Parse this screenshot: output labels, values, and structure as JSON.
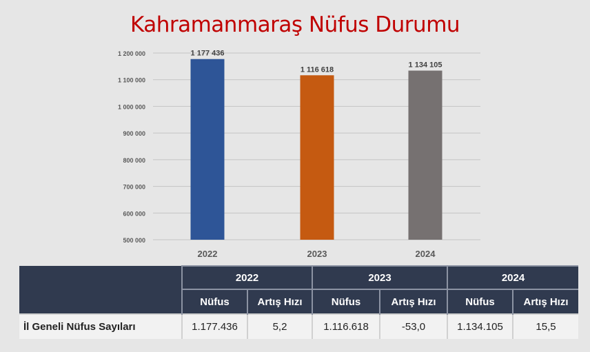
{
  "chart_data": {
    "type": "bar",
    "title": "Kahramanmaraş Nüfus Durumu",
    "categories": [
      "2022",
      "2023",
      "2024"
    ],
    "values": [
      1177436,
      1116618,
      1134105
    ],
    "value_labels": [
      "1 177 436",
      "1 116 618",
      "1 134 105"
    ],
    "bar_colors": [
      "#2e5597",
      "#c55a11",
      "#767171"
    ],
    "ylim": [
      500000,
      1200000
    ],
    "yticks": [
      500000,
      600000,
      700000,
      800000,
      900000,
      1000000,
      1100000,
      1200000
    ],
    "ytick_labels": [
      "500 000",
      "600 000",
      "700 000",
      "800 000",
      "900 000",
      "1 000 000",
      "1 100 000",
      "1 200 000"
    ],
    "grid": true,
    "xlabel": "",
    "ylabel": ""
  },
  "table": {
    "years": [
      "2022",
      "2023",
      "2024"
    ],
    "sub_headers": [
      "Nüfus",
      "Artış Hızı"
    ],
    "row": {
      "label": "İl Geneli Nüfus Sayıları",
      "cells": [
        "1.177.436",
        "5,2",
        "1.116.618",
        "-53,0",
        "1.134.105",
        "15,5"
      ]
    }
  },
  "colors": {
    "title": "#c00000",
    "header_bg": "#303a4f",
    "background": "#e6e6e6"
  }
}
